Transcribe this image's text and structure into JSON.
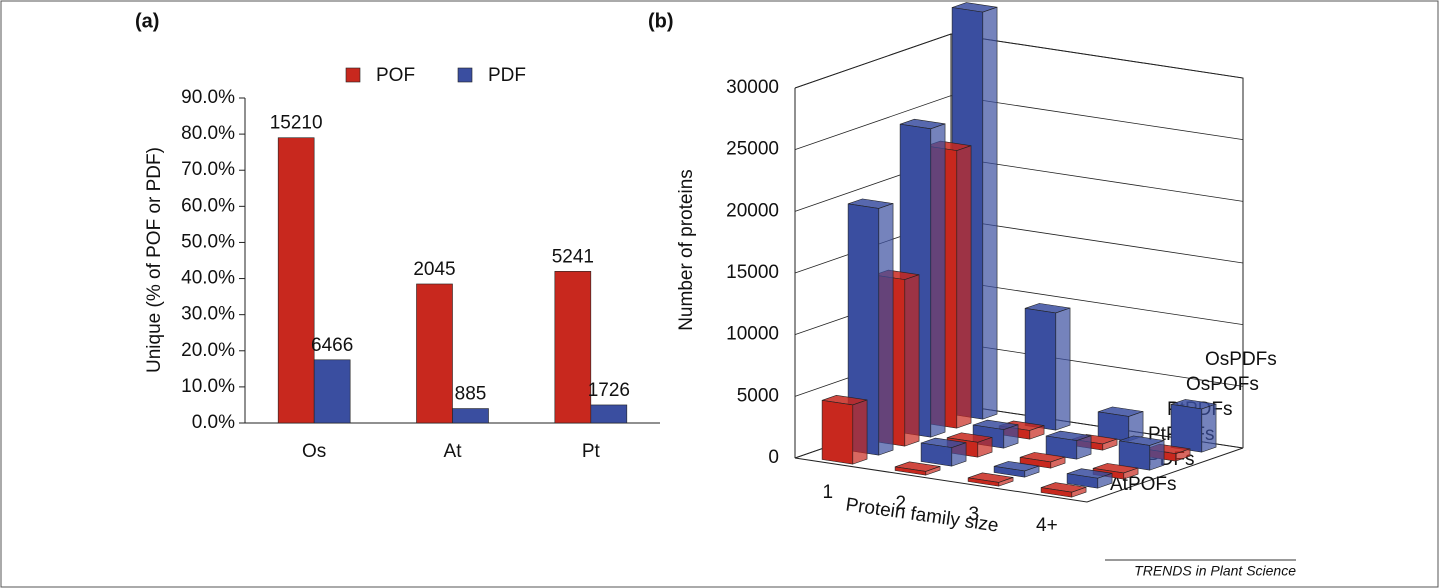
{
  "chart_data": [
    {
      "type": "bar",
      "title": "(a)",
      "y_label": "Unique (% of POF or PDF)",
      "categories": [
        "Os",
        "At",
        "Pt"
      ],
      "series": [
        {
          "name": "POF",
          "color": "#c8281e",
          "values": [
            79,
            38.5,
            42
          ],
          "labels": [
            15210,
            2045,
            5241
          ]
        },
        {
          "name": "PDF",
          "color": "#3a4ea0",
          "values": [
            17.5,
            4,
            5
          ],
          "labels": [
            6466,
            885,
            1726
          ]
        }
      ],
      "ylim": [
        0,
        90
      ],
      "yticks": [
        {
          "value": 0,
          "label": "0.0%"
        },
        {
          "value": 10,
          "label": "10.0%"
        },
        {
          "value": 20,
          "label": "20.0%"
        },
        {
          "value": 30,
          "label": "30.0%"
        },
        {
          "value": 40,
          "label": "40.0%"
        },
        {
          "value": 50,
          "label": "50.0%"
        },
        {
          "value": 60,
          "label": "60.0%"
        },
        {
          "value": 70,
          "label": "70.0%"
        },
        {
          "value": 80,
          "label": "80.0%"
        },
        {
          "value": 90,
          "label": "90.0%"
        }
      ]
    },
    {
      "type": "bar3d",
      "title": "(b)",
      "x_label": "Protein family size",
      "y_label": "Number of proteins",
      "categories": [
        "1",
        "2",
        "3",
        "4+"
      ],
      "series": [
        {
          "name": "AtPOFs",
          "color": "#c8281e",
          "values": [
            4800,
            300,
            300,
            400
          ]
        },
        {
          "name": "AtPDFs",
          "color": "#3a4ea0",
          "values": [
            20000,
            1500,
            500,
            800
          ]
        },
        {
          "name": "PtPOFs",
          "color": "#c8281e",
          "values": [
            13500,
            1200,
            500,
            500
          ]
        },
        {
          "name": "PtPDFs",
          "color": "#3a4ea0",
          "values": [
            25000,
            1500,
            1500,
            2000
          ]
        },
        {
          "name": "OsPOFs",
          "color": "#c8281e",
          "values": [
            22500,
            700,
            500,
            600
          ]
        },
        {
          "name": "OsPDFs",
          "color": "#3a4ea0",
          "values": [
            33000,
            9500,
            2000,
            3500
          ]
        }
      ],
      "ylim": [
        0,
        30000
      ],
      "yticks": [
        0,
        5000,
        10000,
        15000,
        20000,
        25000,
        30000
      ]
    }
  ],
  "footer": "TRENDS in Plant Science"
}
